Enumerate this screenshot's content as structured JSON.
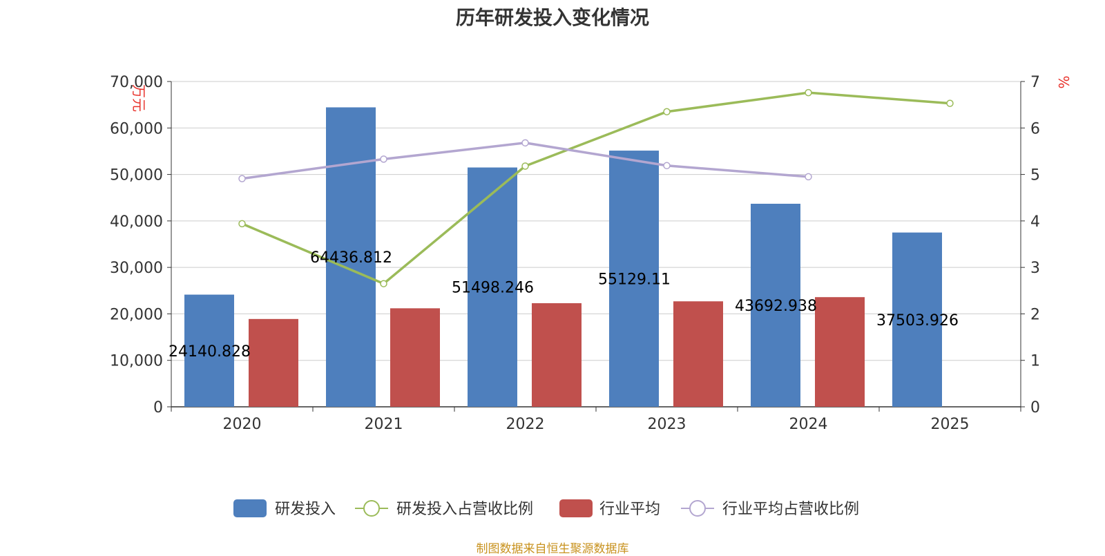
{
  "title": "历年研发投入变化情况",
  "source": "制图数据来自恒生聚源数据库",
  "chart_data": {
    "type": "bar",
    "categories": [
      "2020",
      "2021",
      "2022",
      "2023",
      "2024",
      "2025"
    ],
    "left_axis": {
      "unit": "万元",
      "ylim": [
        0,
        70000
      ],
      "ticks": [
        "0",
        "10,000",
        "20,000",
        "30,000",
        "40,000",
        "50,000",
        "60,000",
        "70,000"
      ]
    },
    "right_axis": {
      "unit": "%",
      "ylim": [
        0,
        7
      ],
      "ticks": [
        "0",
        "1",
        "2",
        "3",
        "4",
        "5",
        "6",
        "7"
      ]
    },
    "series": [
      {
        "name": "研发投入",
        "type": "bar",
        "axis": "left",
        "color": "#4e7fbd",
        "values": [
          24140.828,
          64436.812,
          51498.246,
          55129.11,
          43692.938,
          37503.926
        ],
        "labels": [
          "24140.828",
          "64436.812",
          "51498.246",
          "55129.11",
          "43692.938",
          "37503.926"
        ]
      },
      {
        "name": "研发投入占营收比例",
        "type": "line",
        "axis": "right",
        "color": "#9bbb59",
        "values": [
          3.94,
          2.65,
          5.18,
          6.35,
          6.76,
          6.53
        ]
      },
      {
        "name": "行业平均",
        "type": "bar",
        "axis": "left",
        "color": "#c0504d",
        "values": [
          18900,
          21200,
          22300,
          22700,
          23600,
          null
        ]
      },
      {
        "name": "行业平均占营收比例",
        "type": "line",
        "axis": "right",
        "color": "#b3a6d0",
        "values": [
          4.91,
          5.33,
          5.68,
          5.19,
          4.95,
          null
        ]
      }
    ],
    "grid": true,
    "legend": "bottom"
  }
}
